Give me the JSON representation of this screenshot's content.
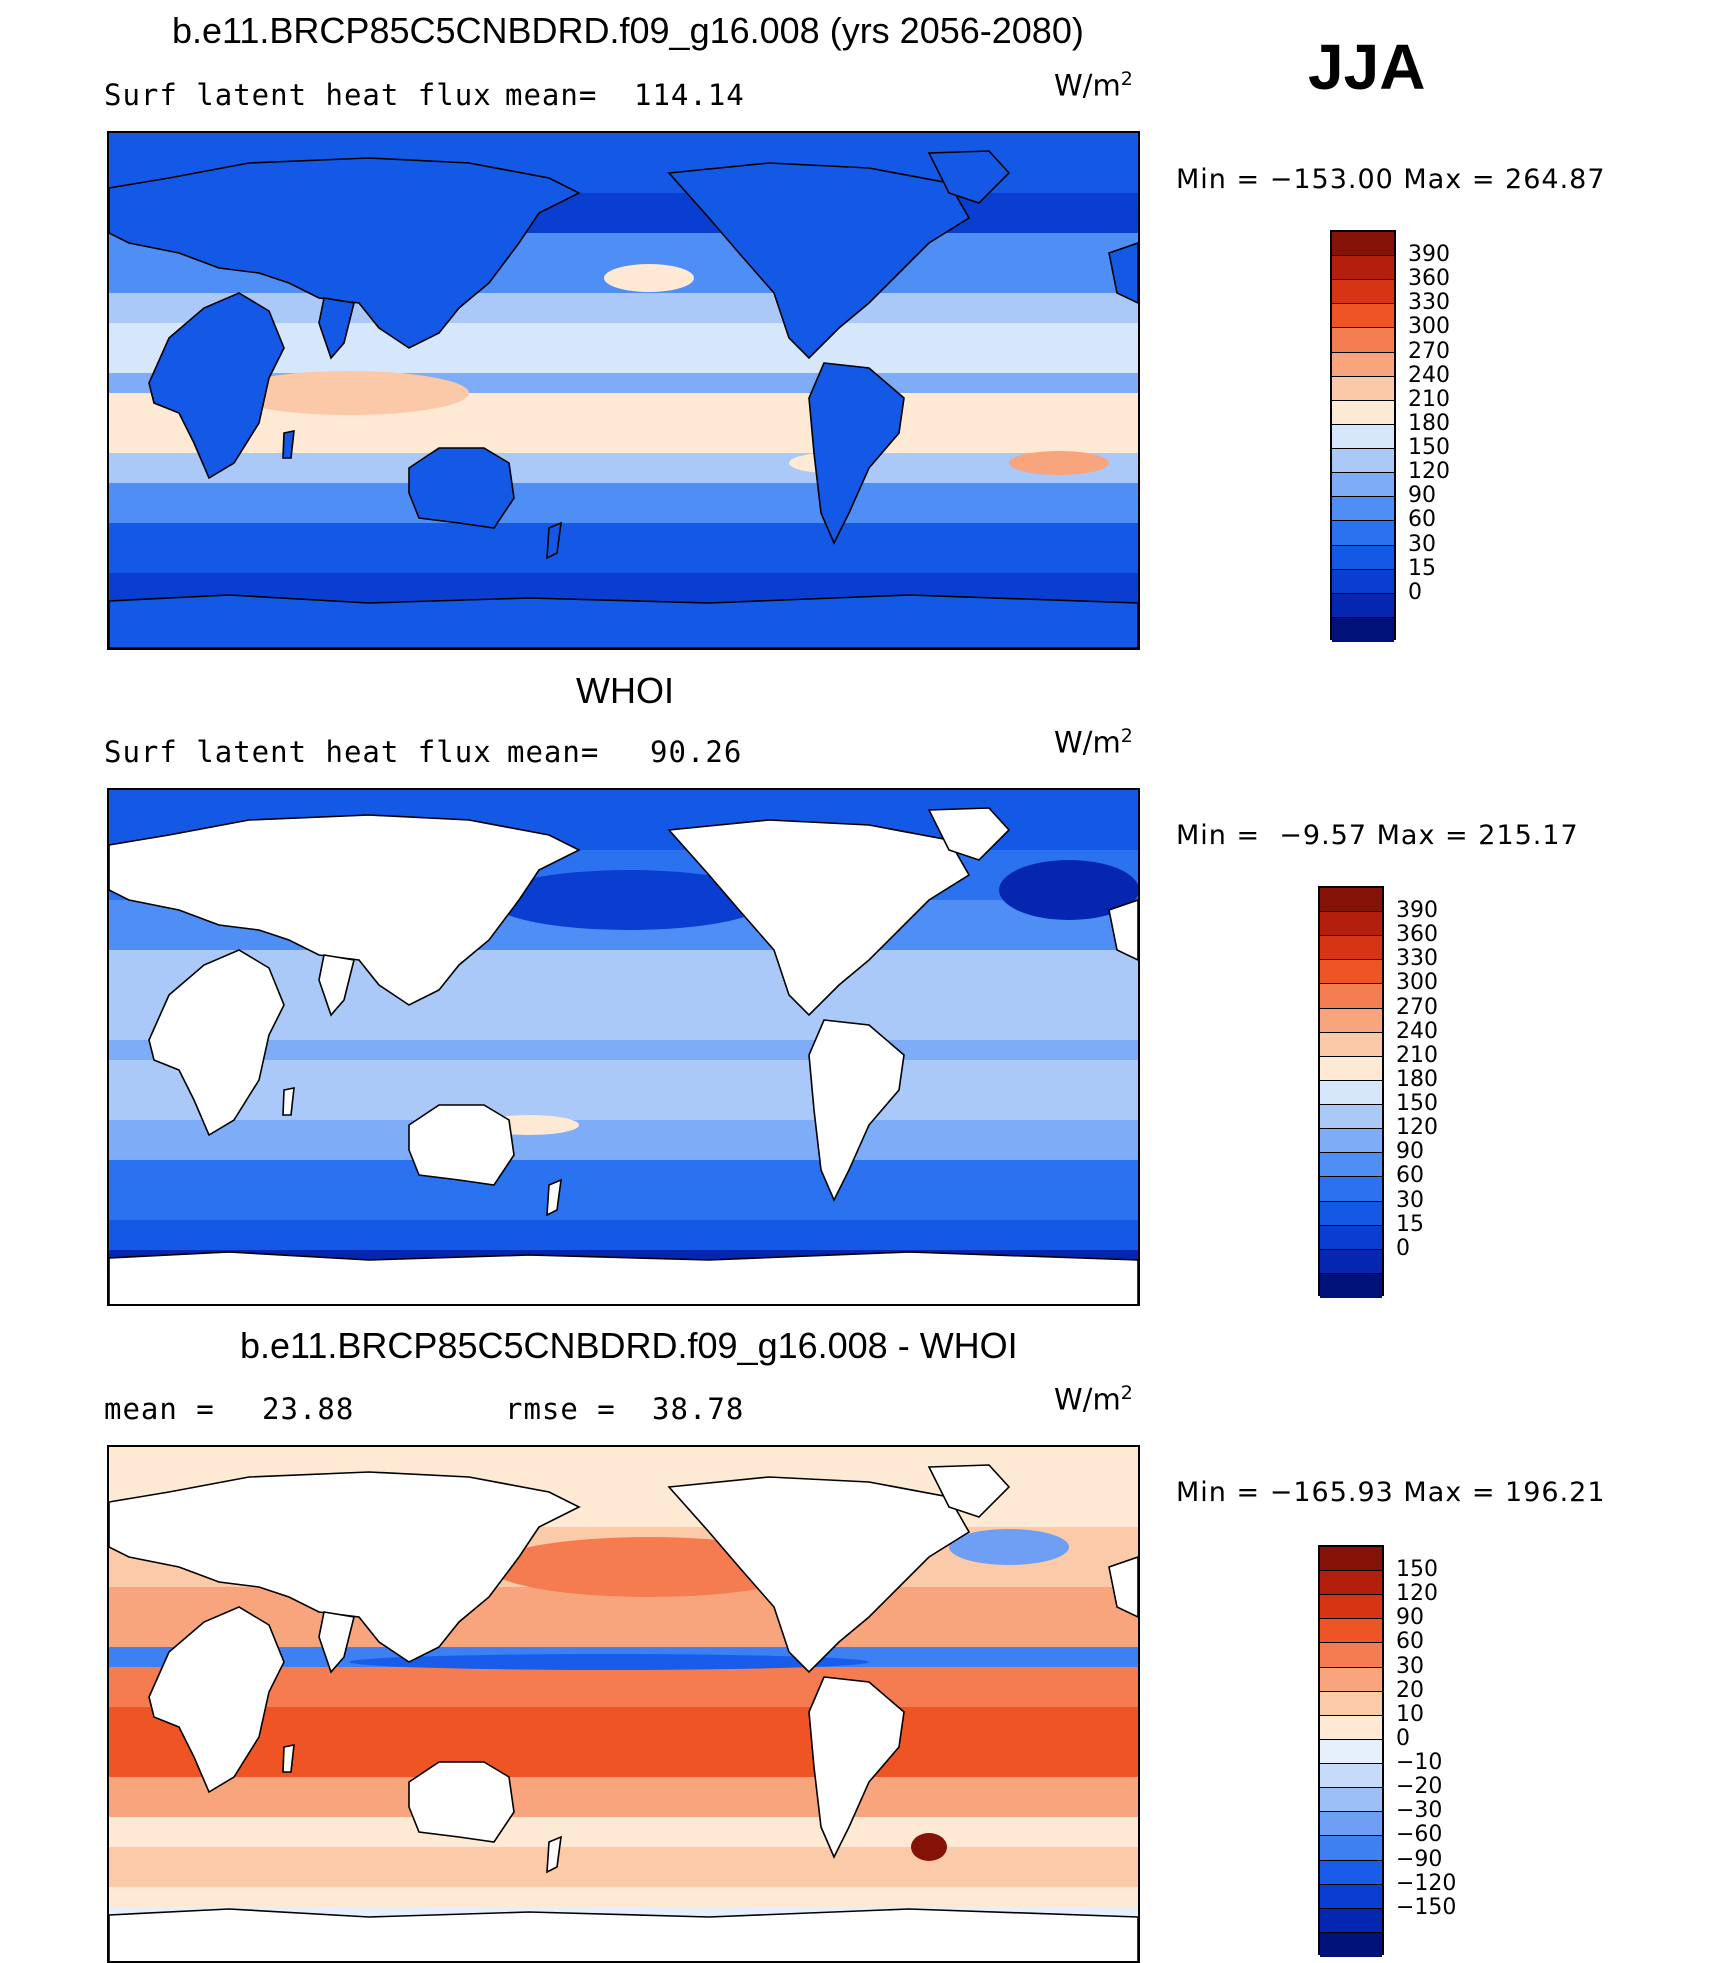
{
  "season": "JJA",
  "colors": {
    "abs_scale": [
      "#00127a",
      "#0426b0",
      "#0a3ed0",
      "#1458e6",
      "#2a72f0",
      "#4f8ef5",
      "#7eacf7",
      "#aac8f8",
      "#d6e6fb",
      "#fde9d4",
      "#fbc9a8",
      "#f8a57e",
      "#f47e52",
      "#ee5424",
      "#d63412",
      "#b41e0c",
      "#841206"
    ],
    "diff_scale": [
      "#00127a",
      "#0426b0",
      "#0a3ed0",
      "#1a5cea",
      "#3e80f2",
      "#6e9ff5",
      "#9cbff8",
      "#c6dbfa",
      "#e6f0fc",
      "#fde9d4",
      "#fbcaa8",
      "#f8a57e",
      "#f47c50",
      "#ee5424",
      "#d63412",
      "#b41e0c",
      "#841206"
    ],
    "land": "#ffffff",
    "coast": "#000000"
  },
  "chart_data": [
    {
      "type": "heatmap",
      "title": "b.e11.BRCP85C5CNBDRD.f09_g16.008 (yrs 2056-2080)",
      "variable": "Surf latent heat flux",
      "stat_label": "mean=",
      "stat_value": "114.14",
      "units": "W/m",
      "units_exp": "2",
      "min_label": "Min =",
      "min_value": "−153.00",
      "max_label": "Max =",
      "max_value": "264.87",
      "colorbar_levels": [
        "390",
        "360",
        "330",
        "300",
        "270",
        "240",
        "210",
        "180",
        "150",
        "120",
        "90",
        "60",
        "30",
        "15",
        "0"
      ]
    },
    {
      "type": "heatmap",
      "title": "WHOI",
      "variable": "Surf latent heat flux",
      "stat_label": "mean=",
      "stat_value": "90.26",
      "units": "W/m",
      "units_exp": "2",
      "min_label": "Min =",
      "min_value": "−9.57",
      "max_label": "Max =",
      "max_value": "215.17",
      "colorbar_levels": [
        "390",
        "360",
        "330",
        "300",
        "270",
        "240",
        "210",
        "180",
        "150",
        "120",
        "90",
        "60",
        "30",
        "15",
        "0"
      ]
    },
    {
      "type": "heatmap",
      "title": "b.e11.BRCP85C5CNBDRD.f09_g16.008 - WHOI",
      "stat_label": "mean =",
      "stat_value": "23.88",
      "rmse_label": "rmse =",
      "rmse_value": "38.78",
      "units": "W/m",
      "units_exp": "2",
      "min_label": "Min =",
      "min_value": "−165.93",
      "max_label": "Max =",
      "max_value": "196.21",
      "colorbar_levels": [
        "150",
        "120",
        "90",
        "60",
        "30",
        "20",
        "10",
        "0",
        "−10",
        "−20",
        "−30",
        "−60",
        "−90",
        "−120",
        "−150"
      ]
    }
  ]
}
